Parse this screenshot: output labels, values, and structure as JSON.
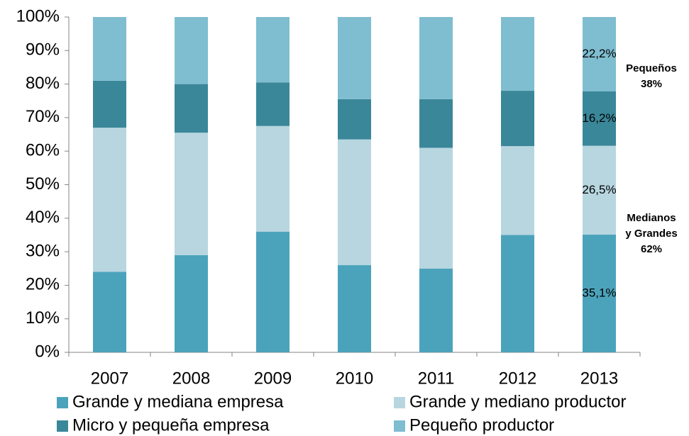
{
  "chart_data": {
    "type": "stacked_bar",
    "categories": [
      "2007",
      "2008",
      "2009",
      "2010",
      "2011",
      "2012",
      "2013"
    ],
    "series": [
      {
        "name": "Grande y mediana empresa",
        "color": "#4ba3bb",
        "values": [
          24,
          29,
          36,
          26,
          25,
          35,
          35.1
        ],
        "value_labels": [
          null,
          null,
          null,
          null,
          null,
          null,
          "35,1%"
        ]
      },
      {
        "name": "Grande y mediano productor",
        "color": "#b7d6e0",
        "values": [
          43,
          36.5,
          31.5,
          37.5,
          36,
          26.5,
          26.5
        ],
        "value_labels": [
          null,
          null,
          null,
          null,
          null,
          null,
          "26,5%"
        ]
      },
      {
        "name": "Micro y pequeña empresa",
        "color": "#3a8799",
        "values": [
          14,
          14.5,
          13,
          12,
          14.5,
          16.5,
          16.2
        ],
        "value_labels": [
          null,
          null,
          null,
          null,
          null,
          null,
          "16,2%"
        ]
      },
      {
        "name": "Pequeño productor",
        "color": "#7fbdd0",
        "values": [
          19,
          20,
          19.5,
          24.5,
          24.5,
          22,
          22.2
        ],
        "value_labels": [
          null,
          null,
          null,
          null,
          null,
          null,
          "22,2%"
        ]
      }
    ],
    "annotations": [
      {
        "lines": [
          "Pequeños",
          "38%"
        ]
      },
      {
        "lines": [
          "Medianos",
          "y Grandes",
          "62%"
        ]
      }
    ],
    "ylim": [
      0,
      100
    ],
    "yticks": [
      {
        "value": 0,
        "label": "0%"
      },
      {
        "value": 10,
        "label": "10%"
      },
      {
        "value": 20,
        "label": "20%"
      },
      {
        "value": 30,
        "label": "30%"
      },
      {
        "value": 40,
        "label": "40%"
      },
      {
        "value": 50,
        "label": "50%"
      },
      {
        "value": 60,
        "label": "60%"
      },
      {
        "value": 70,
        "label": "70%"
      },
      {
        "value": 80,
        "label": "80%"
      },
      {
        "value": 90,
        "label": "90%"
      },
      {
        "value": 100,
        "label": "100%"
      }
    ],
    "grid": false
  }
}
